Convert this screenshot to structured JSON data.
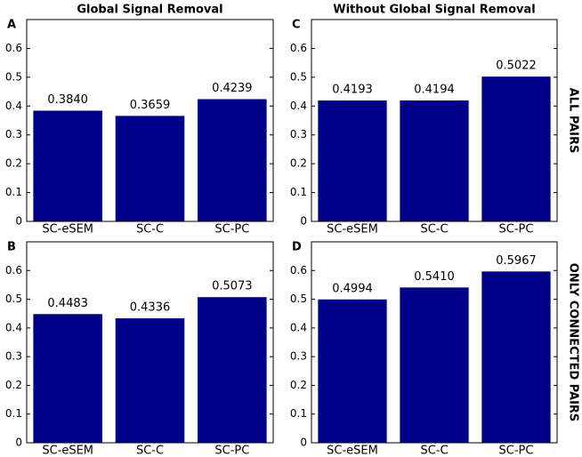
{
  "chart_data": [
    {
      "type": "bar",
      "panel": "A",
      "title": "Global Signal Removal",
      "categories": [
        "SC-eSEM",
        "SC-C",
        "SC-PC"
      ],
      "values": [
        0.384,
        0.3659,
        0.4239
      ],
      "value_labels": [
        "0.3840",
        "0.3659",
        "0.4239"
      ],
      "color": "#000088",
      "ylim": [
        0,
        0.7
      ],
      "yticks": [
        0,
        0.1,
        0.2,
        0.3,
        0.4,
        0.5,
        0.6
      ]
    },
    {
      "type": "bar",
      "panel": "C",
      "title": "Without Global Signal Removal",
      "row_label": "ALL PAIRS",
      "categories": [
        "SC-eSEM",
        "SC-C",
        "SC-PC"
      ],
      "values": [
        0.4193,
        0.4194,
        0.5022
      ],
      "value_labels": [
        "0.4193",
        "0.4194",
        "0.5022"
      ],
      "color": "#000088",
      "ylim": [
        0,
        0.7
      ],
      "yticks": [
        0,
        0.1,
        0.2,
        0.3,
        0.4,
        0.5,
        0.6
      ]
    },
    {
      "type": "bar",
      "panel": "B",
      "categories": [
        "SC-eSEM",
        "SC-C",
        "SC-PC"
      ],
      "values": [
        0.4483,
        0.4336,
        0.5073
      ],
      "value_labels": [
        "0.4483",
        "0.4336",
        "0.5073"
      ],
      "color": "#000088",
      "ylim": [
        0,
        0.7
      ],
      "yticks": [
        0,
        0.1,
        0.2,
        0.3,
        0.4,
        0.5,
        0.6
      ]
    },
    {
      "type": "bar",
      "panel": "D",
      "row_label": "ONLY CONNECTED PAIRS",
      "categories": [
        "SC-eSEM",
        "SC-C",
        "SC-PC"
      ],
      "values": [
        0.4994,
        0.541,
        0.5967
      ],
      "value_labels": [
        "0.4994",
        "0.5410",
        "0.5967"
      ],
      "color": "#000088",
      "ylim": [
        0,
        0.7
      ],
      "yticks": [
        0,
        0.1,
        0.2,
        0.3,
        0.4,
        0.5,
        0.6
      ]
    }
  ]
}
